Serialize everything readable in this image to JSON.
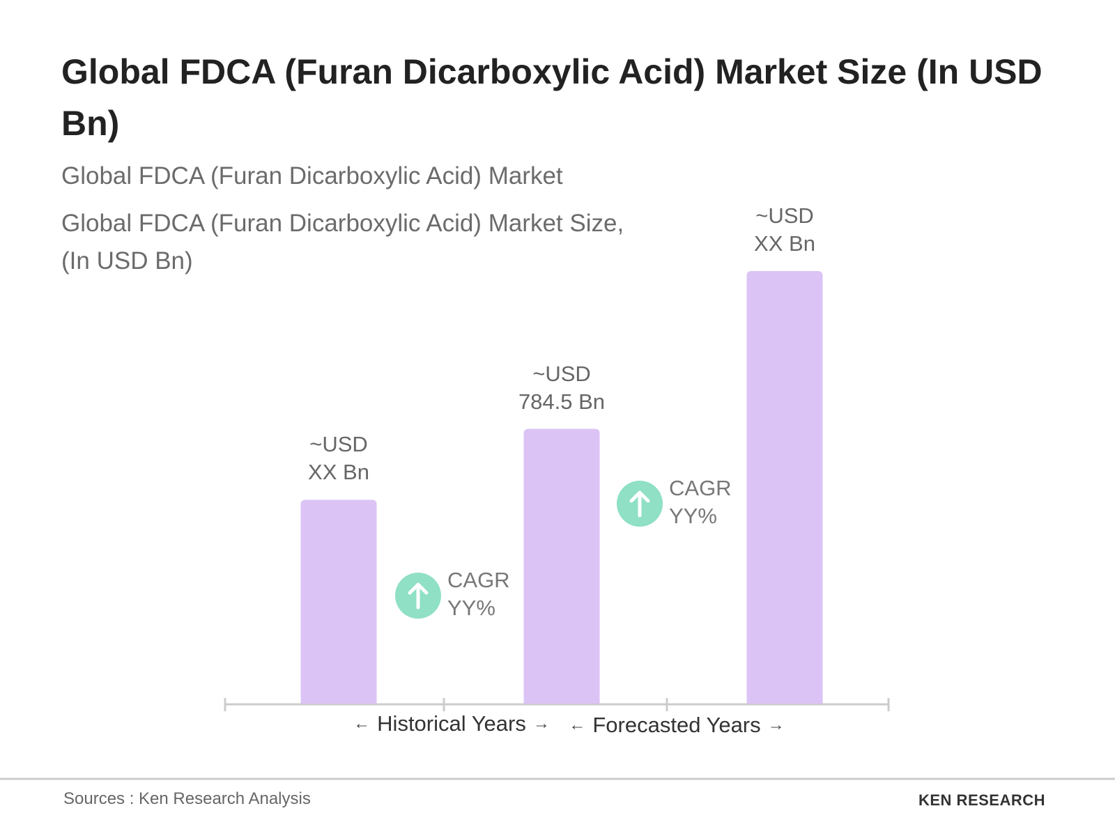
{
  "chart_data": {
    "type": "bar",
    "title": "Global FDCA (Furan Dicarboxylic Acid) Market Size (In USD Bn)",
    "subtitle": "Global FDCA (Furan Dicarboxylic Acid) Market",
    "y_label": "Global FDCA (Furan Dicarboxylic Acid) Market Size, (In USD Bn)",
    "categories": [
      null,
      null,
      null
    ],
    "values": [
      582,
      784.5,
      1235
    ],
    "value_labels": [
      "~USD\nXX Bn",
      "~USD\n784.5 Bn",
      "~USD\nXX Bn"
    ],
    "color": "#dcc3f5",
    "annotations": [
      "CAGR\nYY%",
      "CAGR\nYY%"
    ],
    "period_labels": [
      "Historical Years",
      "Forecasted Years"
    ],
    "source": "Sources : Ken Research Analysis"
  },
  "logo": "KEN RESEARCH"
}
